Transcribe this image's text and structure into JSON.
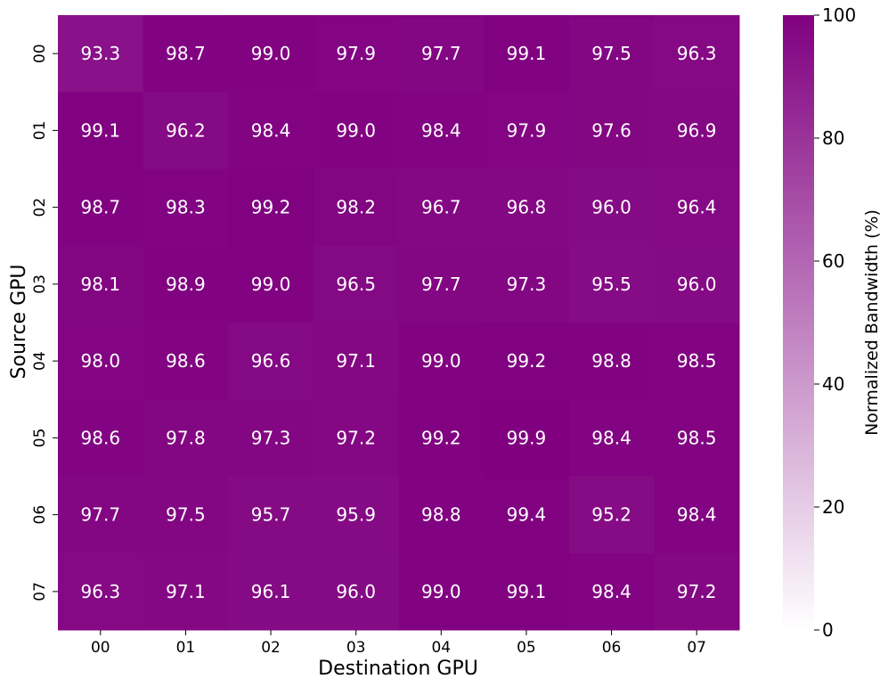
{
  "chart_data": {
    "type": "heatmap",
    "title": "",
    "xlabel": "Destination GPU",
    "ylabel": "Source GPU",
    "x_categories": [
      "00",
      "01",
      "02",
      "03",
      "04",
      "05",
      "06",
      "07"
    ],
    "y_categories": [
      "00",
      "01",
      "02",
      "03",
      "04",
      "05",
      "06",
      "07"
    ],
    "values": [
      [
        93.3,
        98.7,
        99.0,
        97.9,
        97.7,
        99.1,
        97.5,
        96.3
      ],
      [
        99.1,
        96.2,
        98.4,
        99.0,
        98.4,
        97.9,
        97.6,
        96.9
      ],
      [
        98.7,
        98.3,
        99.2,
        98.2,
        96.7,
        96.8,
        96.0,
        96.4
      ],
      [
        98.1,
        98.9,
        99.0,
        96.5,
        97.7,
        97.3,
        95.5,
        96.0
      ],
      [
        98.0,
        98.6,
        96.6,
        97.1,
        99.0,
        99.2,
        98.8,
        98.5
      ],
      [
        98.6,
        97.8,
        97.3,
        97.2,
        99.2,
        99.9,
        98.4,
        98.5
      ],
      [
        97.7,
        97.5,
        95.7,
        95.9,
        98.8,
        99.4,
        95.2,
        98.4
      ],
      [
        96.3,
        97.1,
        96.1,
        96.0,
        99.0,
        99.1,
        98.4,
        97.2
      ]
    ],
    "value_labels": [
      [
        "93.3",
        "98.7",
        "99.0",
        "97.9",
        "97.7",
        "99.1",
        "97.5",
        "96.3"
      ],
      [
        "99.1",
        "96.2",
        "98.4",
        "99.0",
        "98.4",
        "97.9",
        "97.6",
        "96.9"
      ],
      [
        "98.7",
        "98.3",
        "99.2",
        "98.2",
        "96.7",
        "96.8",
        "96.0",
        "96.4"
      ],
      [
        "98.1",
        "98.9",
        "99.0",
        "96.5",
        "97.7",
        "97.3",
        "95.5",
        "96.0"
      ],
      [
        "98.0",
        "98.6",
        "96.6",
        "97.1",
        "99.0",
        "99.2",
        "98.8",
        "98.5"
      ],
      [
        "98.6",
        "97.8",
        "97.3",
        "97.2",
        "99.2",
        "99.9",
        "98.4",
        "98.5"
      ],
      [
        "97.7",
        "97.5",
        "95.7",
        "95.9",
        "98.8",
        "99.4",
        "95.2",
        "98.4"
      ],
      [
        "96.3",
        "97.1",
        "96.1",
        "96.0",
        "99.0",
        "99.1",
        "98.4",
        "97.2"
      ]
    ],
    "colorbar": {
      "label": "Normalized Bandwidth (%)",
      "range": [
        0,
        100
      ],
      "ticks": [
        0,
        20,
        40,
        60,
        80,
        100
      ],
      "tick_labels": [
        "0",
        "20",
        "40",
        "60",
        "80",
        "100"
      ],
      "color_low": "#ffffff",
      "color_high": "#800080"
    },
    "cell_text_color": "#ffffff",
    "grid": false,
    "legend": "colorbar-right"
  }
}
